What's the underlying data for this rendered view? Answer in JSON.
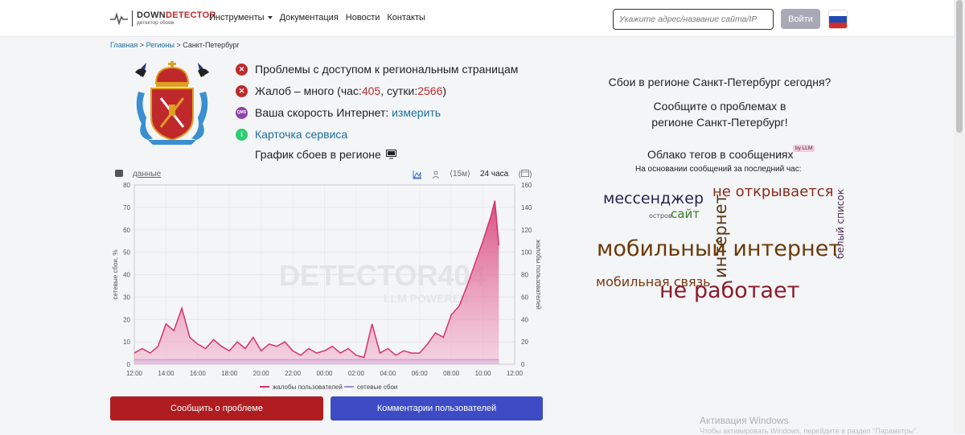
{
  "header": {
    "logo_title_dark": "DOWN",
    "logo_title_red": "DETECTOR",
    "logo_subtitle": "детектор сбоев",
    "nav": [
      {
        "label": "Инструменты",
        "has_dropdown": true
      },
      {
        "label": "Документация"
      },
      {
        "label": "Новости"
      },
      {
        "label": "Контакты"
      }
    ],
    "search_placeholder": "Укажите адрес/название сайта/IP",
    "login_label": "Войти",
    "flag": "russia-flag-icon"
  },
  "breadcrumb": {
    "home": "Главная",
    "regions": "Регионы",
    "current": "Санкт-Петербург",
    "sep": ">"
  },
  "status": {
    "problems": "Проблемы с доступом к региональным страницам",
    "complaints_prefix": "Жалоб – много (час: ",
    "complaints_hour": "405",
    "complaints_mid": ", сутки: ",
    "complaints_day": "2566",
    "complaints_suffix": ")",
    "speed_text": "Ваша скорость Интернет: ",
    "speed_link": "измерить",
    "service_card": "Карточка сервиса",
    "chart_heading": "График сбоев в регионе"
  },
  "chart_toolbar": {
    "data_link": "данные",
    "interval_15m": "⟨15м⟩",
    "interval_24h": "24 часа"
  },
  "chart_data": {
    "type": "area",
    "x": [
      "12:00",
      "12:30",
      "13:00",
      "13:30",
      "14:00",
      "14:30",
      "15:00",
      "15:30",
      "16:00",
      "16:30",
      "17:00",
      "17:30",
      "18:00",
      "18:30",
      "19:00",
      "19:30",
      "20:00",
      "20:30",
      "21:00",
      "21:30",
      "22:00",
      "22:30",
      "23:00",
      "23:30",
      "00:00",
      "00:30",
      "01:00",
      "01:30",
      "02:00",
      "02:30",
      "03:00",
      "03:30",
      "04:00",
      "04:30",
      "05:00",
      "05:30",
      "06:00",
      "06:30",
      "07:00",
      "07:30",
      "08:00",
      "08:30",
      "09:00",
      "09:30",
      "10:00",
      "10:30",
      "10:45",
      "11:00"
    ],
    "xticks": [
      "12:00",
      "14:00",
      "16:00",
      "18:00",
      "20:00",
      "22:00",
      "00:00",
      "02:00",
      "04:00",
      "06:00",
      "08:00",
      "10:00",
      "12:00"
    ],
    "series": [
      {
        "name": "жалобы пользователей",
        "axis": "left",
        "color": "#d6336c",
        "values": [
          5,
          7,
          5,
          8,
          18,
          15,
          25,
          12,
          9,
          7,
          11,
          8,
          6,
          10,
          7,
          12,
          6,
          9,
          8,
          10,
          6,
          4,
          7,
          5,
          6,
          8,
          5,
          7,
          4,
          3,
          18,
          5,
          7,
          4,
          6,
          5,
          5,
          9,
          14,
          12,
          22,
          26,
          35,
          45,
          55,
          66,
          73,
          53
        ]
      },
      {
        "name": "сетевые сбои",
        "axis": "right",
        "color": "#9b8cd6",
        "values": [
          4,
          4,
          4,
          4,
          4,
          4,
          4,
          4,
          4,
          4,
          4,
          4,
          4,
          4,
          4,
          4,
          4,
          4,
          4,
          4,
          4,
          4,
          4,
          4,
          4,
          4,
          4,
          4,
          4,
          4,
          4,
          4,
          4,
          4,
          4,
          4,
          4,
          4,
          4,
          4,
          4,
          4,
          4,
          4,
          4,
          4,
          4,
          4
        ]
      }
    ],
    "ylabel_left": "сетевые сбои, %",
    "ylabel_right": "жалобы пользователей",
    "ylim_left": [
      0,
      80
    ],
    "ylim_right": [
      0,
      160
    ],
    "yticks_left": [
      0,
      10,
      20,
      30,
      40,
      50,
      60,
      70,
      80
    ],
    "yticks_right": [
      0,
      20,
      40,
      60,
      80,
      100,
      120,
      140,
      160
    ],
    "grid": true,
    "legend_position": "bottom",
    "watermark": "DETECTOR404",
    "watermark_sub": "LLM POWERED"
  },
  "buttons": {
    "report": "Сообщить о проблеме",
    "comments": "Комментарии пользователей"
  },
  "right": {
    "question": "Сбои в регионе Санкт-Петербург сегодня?",
    "call_line1": "Сообщите о проблемах в",
    "call_line2": "регионе Санкт-Петербург!",
    "tags_heading": "Облако тегов в сообщениях",
    "llm_badge": "by LLM",
    "tags_sub": "На основании сообщений за последний час:",
    "tags": [
      {
        "text": "мессенджер",
        "color": "#2b2255"
      },
      {
        "text": "не открывается",
        "color": "#8b2a1a"
      },
      {
        "text": "остров",
        "color": "#555555"
      },
      {
        "text": "сайт",
        "color": "#3a7a2a"
      },
      {
        "text": "интернет",
        "color": "#5a3a1a"
      },
      {
        "text": "белый список",
        "color": "#4a2a5a"
      },
      {
        "text": "мобильный интернет",
        "color": "#6a3a0a"
      },
      {
        "text": "мобильная связь",
        "color": "#7a3a10"
      },
      {
        "text": "не работает",
        "color": "#8b1a2a"
      }
    ]
  },
  "os_watermark": {
    "line1": "Активация Windows",
    "line2": "Чтобы активировать Windows, перейдите в раздел \"Параметры\"."
  }
}
